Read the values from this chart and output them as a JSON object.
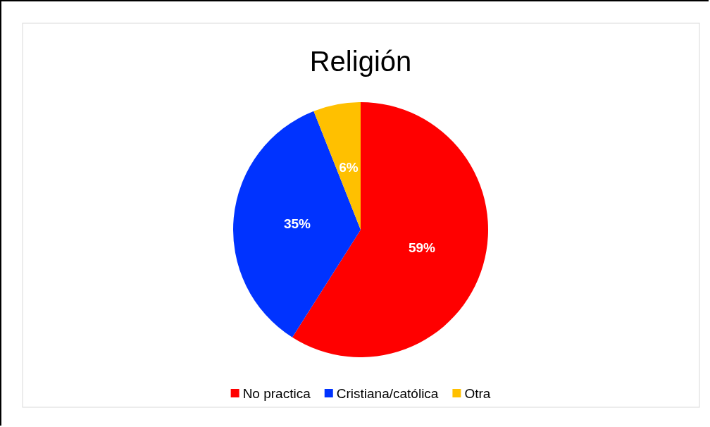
{
  "chart_data": {
    "type": "pie",
    "title": "Religión",
    "categories": [
      "No practica",
      "Cristiana/católica",
      "Otra"
    ],
    "values": [
      59,
      35,
      6
    ],
    "colors": [
      "#ff0000",
      "#0033ff",
      "#ffc000"
    ],
    "value_labels": [
      "59%",
      "35%",
      "6%"
    ],
    "legend": "bottom"
  }
}
